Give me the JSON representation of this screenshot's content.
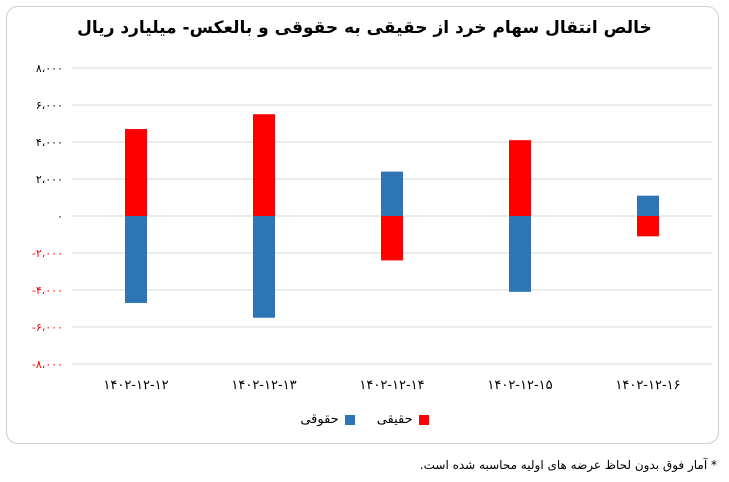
{
  "chart_data": {
    "type": "bar",
    "title": "خالص انتقال سهام خرد از حقیقی به حقوقی و بالعکس- میلیارد ریال",
    "categories": [
      "۱۴۰۲-۱۲-۱۲",
      "۱۴۰۲-۱۲-۱۳",
      "۱۴۰۲-۱۲-۱۴",
      "۱۴۰۲-۱۲-۱۵",
      "۱۴۰۲-۱۲-۱۶"
    ],
    "series": [
      {
        "name": "حقیقی",
        "color": "#ff0000",
        "values": [
          4700,
          5500,
          -2400,
          4100,
          -1100
        ]
      },
      {
        "name": "حقوقی",
        "color": "#2e75b6",
        "values": [
          -4700,
          -5500,
          2400,
          -4100,
          1100
        ]
      }
    ],
    "ylim": [
      -8000,
      8000
    ],
    "yticks": [
      8000,
      6000,
      4000,
      2000,
      0,
      -2000,
      -4000,
      -6000,
      -8000
    ],
    "ytick_labels": [
      "۸،۰۰۰",
      "۶،۰۰۰",
      "۴،۰۰۰",
      "۲،۰۰۰",
      "۰",
      "-۲،۰۰۰",
      "-۴،۰۰۰",
      "-۶،۰۰۰",
      "-۸،۰۰۰"
    ],
    "ytick_colors": [
      "#000000",
      "#000000",
      "#000000",
      "#000000",
      "#000000",
      "#ff0000",
      "#ff0000",
      "#ff0000",
      "#ff0000"
    ],
    "grid": true,
    "stacked": true,
    "legend": "bottom"
  },
  "footnote": "* آمار فوق بدون لحاظ عرضه های اولیه محاسبه شده است."
}
